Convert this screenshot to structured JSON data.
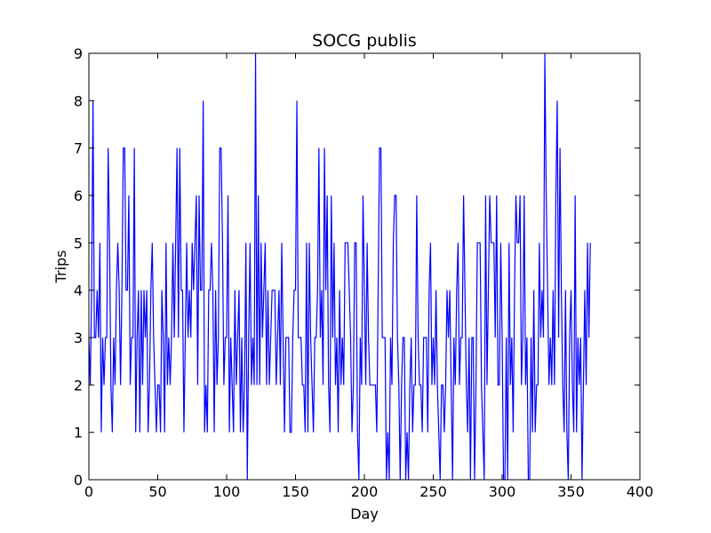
{
  "chart_data": {
    "type": "line",
    "title": "SOCG publis",
    "x_label": "Day",
    "y_label": "Trips",
    "xlim": [
      0,
      400
    ],
    "xticks": [
      0,
      50,
      100,
      150,
      200,
      250,
      300,
      350,
      400
    ],
    "ylim": [
      0,
      9
    ],
    "yticks": [
      0,
      1,
      2,
      3,
      4,
      5,
      6,
      7,
      8,
      9
    ],
    "x": [
      0,
      1,
      2,
      3,
      4,
      5,
      6,
      7,
      8,
      9,
      10,
      11,
      12,
      13,
      14,
      15,
      16,
      17,
      18,
      19,
      20,
      21,
      22,
      23,
      24,
      25,
      26,
      27,
      28,
      29,
      30,
      31,
      32,
      33,
      34,
      35,
      36,
      37,
      38,
      39,
      40,
      41,
      42,
      43,
      44,
      45,
      46,
      47,
      48,
      49,
      50,
      51,
      52,
      53,
      54,
      55,
      56,
      57,
      58,
      59,
      60,
      61,
      62,
      63,
      64,
      65,
      66,
      67,
      68,
      69,
      70,
      71,
      72,
      73,
      74,
      75,
      76,
      77,
      78,
      79,
      80,
      81,
      82,
      83,
      84,
      85,
      86,
      87,
      88,
      89,
      90,
      91,
      92,
      93,
      94,
      95,
      96,
      97,
      98,
      99,
      100,
      101,
      102,
      103,
      104,
      105,
      106,
      107,
      108,
      109,
      110,
      111,
      112,
      113,
      114,
      115,
      116,
      117,
      118,
      119,
      120,
      121,
      122,
      123,
      124,
      125,
      126,
      127,
      128,
      129,
      130,
      131,
      132,
      133,
      134,
      135,
      136,
      137,
      138,
      139,
      140,
      141,
      142,
      143,
      144,
      145,
      146,
      147,
      148,
      149,
      150,
      151,
      152,
      153,
      154,
      155,
      156,
      157,
      158,
      159,
      160,
      161,
      162,
      163,
      164,
      165,
      166,
      167,
      168,
      169,
      170,
      171,
      172,
      173,
      174,
      175,
      176,
      177,
      178,
      179,
      180,
      181,
      182,
      183,
      184,
      185,
      186,
      187,
      188,
      189,
      190,
      191,
      192,
      193,
      194,
      195,
      196,
      197,
      198,
      199,
      200,
      201,
      202,
      203,
      204,
      205,
      206,
      207,
      208,
      209,
      210,
      211,
      212,
      213,
      214,
      215,
      216,
      217,
      218,
      219,
      220,
      221,
      222,
      223,
      224,
      225,
      226,
      227,
      228,
      229,
      230,
      231,
      232,
      233,
      234,
      235,
      236,
      237,
      238,
      239,
      240,
      241,
      242,
      243,
      244,
      245,
      246,
      247,
      248,
      249,
      250,
      251,
      252,
      253,
      254,
      255,
      256,
      257,
      258,
      259,
      260,
      261,
      262,
      263,
      264,
      265,
      266,
      267,
      268,
      269,
      270,
      271,
      272,
      273,
      274,
      275,
      276,
      277,
      278,
      279,
      280,
      281,
      282,
      283,
      284,
      285,
      286,
      287,
      288,
      289,
      290,
      291,
      292,
      293,
      294,
      295,
      296,
      297,
      298,
      299,
      300,
      301,
      302,
      303,
      304,
      305,
      306,
      307,
      308,
      309,
      310,
      311,
      312,
      313,
      314,
      315,
      316,
      317,
      318,
      319,
      320,
      321,
      322,
      323,
      324,
      325,
      326,
      327,
      328,
      329,
      330,
      331,
      332,
      333,
      334,
      335,
      336,
      337,
      338,
      339,
      340,
      341,
      342,
      343,
      344,
      345,
      346,
      347,
      348,
      349,
      350,
      351,
      352,
      353,
      354,
      355,
      356,
      357,
      358,
      359,
      360,
      361,
      362,
      363,
      364
    ],
    "series": [
      {
        "name": "Trips",
        "color": "#0000ff",
        "values": [
          3,
          2,
          4,
          8,
          3,
          3,
          4,
          3,
          5,
          1,
          3,
          2,
          3,
          3,
          7,
          5,
          2,
          1,
          3,
          2,
          4,
          5,
          4,
          2,
          4,
          7,
          7,
          4,
          4,
          6,
          2,
          3,
          3,
          7,
          1,
          3,
          4,
          1,
          4,
          2,
          4,
          3,
          4,
          1,
          2,
          4,
          5,
          3,
          2,
          1,
          2,
          2,
          1,
          4,
          3,
          1,
          5,
          2,
          3,
          2,
          3,
          5,
          3,
          5,
          7,
          3,
          7,
          4,
          4,
          1,
          3,
          5,
          3,
          4,
          3,
          5,
          4,
          5,
          6,
          2,
          6,
          4,
          4,
          8,
          1,
          2,
          1,
          4,
          4,
          5,
          4,
          1,
          4,
          2,
          3,
          7,
          7,
          5,
          2,
          3,
          3,
          6,
          1,
          3,
          2,
          1,
          4,
          2,
          3,
          4,
          1,
          3,
          1,
          2,
          5,
          0,
          3,
          5,
          2,
          3,
          2,
          9,
          2,
          6,
          2,
          5,
          3,
          4,
          5,
          2,
          4,
          2,
          3,
          4,
          4,
          4,
          2,
          3,
          4,
          2,
          5,
          3,
          1,
          3,
          3,
          3,
          1,
          1,
          3,
          4,
          4,
          8,
          3,
          3,
          3,
          2,
          2,
          1,
          5,
          1,
          5,
          3,
          2,
          1,
          3,
          3,
          4,
          7,
          3,
          4,
          2,
          7,
          4,
          6,
          2,
          1,
          6,
          3,
          5,
          2,
          3,
          1,
          4,
          2,
          3,
          2,
          5,
          5,
          5,
          4,
          3,
          1,
          2,
          5,
          5,
          1,
          0,
          3,
          2,
          6,
          4,
          2,
          5,
          3,
          2,
          2,
          2,
          2,
          2,
          1,
          4,
          7,
          7,
          3,
          3,
          3,
          0,
          1,
          0,
          3,
          2,
          5,
          6,
          6,
          3,
          2,
          0,
          2,
          3,
          3,
          0,
          1,
          0,
          2,
          3,
          1,
          2,
          2,
          6,
          3,
          2,
          2,
          1,
          3,
          3,
          3,
          1,
          4,
          5,
          2,
          3,
          2,
          4,
          2,
          1,
          0,
          2,
          2,
          1,
          2,
          4,
          3,
          4,
          2,
          0,
          3,
          2,
          4,
          5,
          2,
          3,
          3,
          6,
          4,
          2,
          1,
          3,
          0,
          3,
          3,
          0,
          2,
          5,
          5,
          5,
          2,
          1,
          0,
          6,
          2,
          4,
          6,
          5,
          5,
          5,
          3,
          6,
          2,
          2,
          5,
          3,
          0,
          0,
          3,
          0,
          5,
          2,
          3,
          1,
          4,
          6,
          5,
          5,
          6,
          2,
          3,
          6,
          2,
          3,
          0,
          0,
          3,
          1,
          4,
          1,
          2,
          2,
          5,
          3,
          4,
          3,
          9,
          6,
          4,
          2,
          3,
          2,
          4,
          2,
          6,
          8,
          3,
          7,
          4,
          2,
          1,
          4,
          1,
          0,
          3,
          4,
          2,
          1,
          6,
          1,
          3,
          2,
          3,
          0,
          2,
          4,
          2,
          5,
          3,
          5
        ]
      }
    ]
  }
}
